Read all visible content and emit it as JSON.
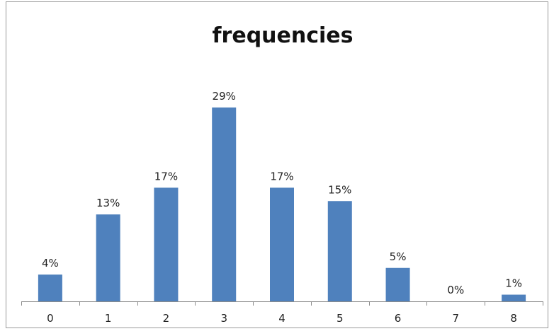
{
  "chart_data": {
    "type": "bar",
    "title": "frequencies",
    "categories": [
      "0",
      "1",
      "2",
      "3",
      "4",
      "5",
      "6",
      "7",
      "8"
    ],
    "values": [
      4,
      13,
      17,
      29,
      17,
      15,
      5,
      0,
      1
    ],
    "data_labels": [
      "4%",
      "13%",
      "17%",
      "29%",
      "17%",
      "15%",
      "5%",
      "0%",
      "1%"
    ],
    "xlabel": "",
    "ylabel": "",
    "ylim": [
      0,
      35
    ],
    "grid": false,
    "legend": "none",
    "bar_color": "#4f81bd"
  }
}
